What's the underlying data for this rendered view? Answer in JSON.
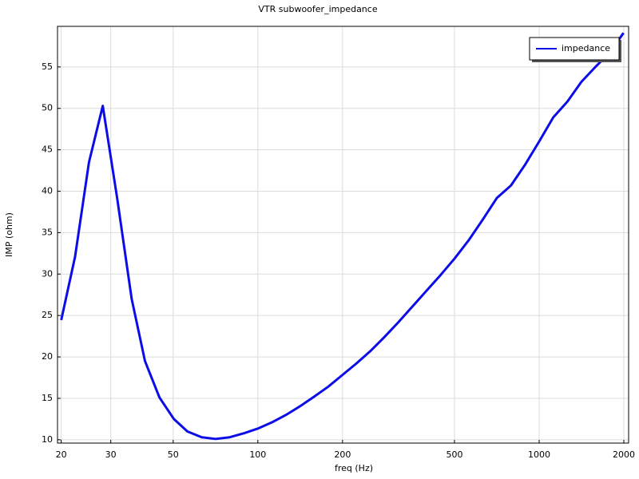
{
  "chart_data": {
    "type": "line",
    "title": "VTR subwoofer_impedance",
    "x_label": "freq (Hz)",
    "y_label": "IMP (ohm)",
    "x_scale": "log",
    "grid": true,
    "legend": "upper right",
    "x": [
      20,
      22.4,
      25.1,
      28.1,
      31.6,
      35.6,
      39.7,
      44.7,
      50.3,
      56.2,
      63.2,
      70.7,
      79.4,
      89.5,
      100,
      112.2,
      125.9,
      141.3,
      158.5,
      177.8,
      199.5,
      223.9,
      251.2,
      281.8,
      316.2,
      354.8,
      398.1,
      446.7,
      501.2,
      562.3,
      631,
      707.9,
      794.3,
      891.3,
      1000,
      1122,
      1259,
      1413,
      1585,
      1778,
      1995
    ],
    "series": [
      {
        "name": "impedance",
        "color": "#0c0ce8",
        "values": [
          24.45,
          32.1,
          43.5,
          50.3,
          39.2,
          27.0,
          19.5,
          15.1,
          12.5,
          11.0,
          10.3,
          10.1,
          10.3,
          10.8,
          11.35,
          12.1,
          13.0,
          14.05,
          15.2,
          16.4,
          17.8,
          19.2,
          20.7,
          22.4,
          24.2,
          26.1,
          28.0,
          29.9,
          31.9,
          34.1,
          36.6,
          39.2,
          40.7,
          43.2,
          46.0,
          48.9,
          50.8,
          53.2,
          55.0,
          56.7,
          59.1
        ]
      }
    ],
    "xlim": [
      19.4,
      2080
    ],
    "xticks": [
      20,
      30,
      50,
      100,
      200,
      500,
      1000,
      2000
    ],
    "ylim": [
      9.6,
      59.9
    ],
    "yticks": [
      10,
      15,
      20,
      25,
      30,
      35,
      40,
      45,
      50,
      55
    ]
  }
}
